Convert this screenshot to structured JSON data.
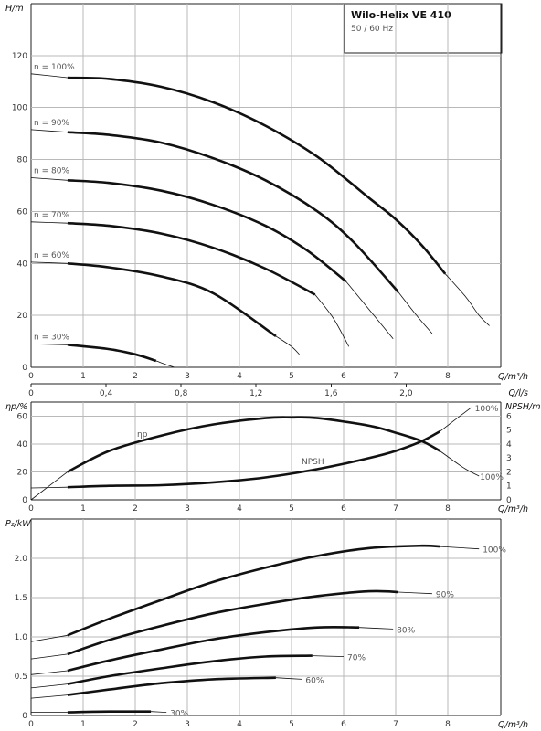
{
  "title": "Wilo-Helix VE 410",
  "subtitle": "50 / 60 Hz",
  "chart_data": [
    {
      "type": "line",
      "ylabel": "H/m",
      "xlabel": "Q/m³/h",
      "xlabel2": "Q/l/s",
      "xlim": [
        0,
        9.5
      ],
      "ylim": [
        0,
        140
      ],
      "x_ticks": [
        "0",
        "1",
        "2",
        "3",
        "4",
        "5",
        "6",
        "7",
        "8"
      ],
      "x_ticks2": [
        "0",
        "0,4",
        "0,8",
        "1,2",
        "1,6",
        "2,0"
      ],
      "y_ticks": [
        "0",
        "20",
        "40",
        "60",
        "80",
        "100",
        "120"
      ],
      "series": [
        {
          "name": "n = 100%",
          "thin_start": [
            [
              0,
              113
            ],
            [
              0.7,
              111.5
            ]
          ],
          "thick": [
            [
              0.7,
              111.5
            ],
            [
              1.5,
              111
            ],
            [
              2.5,
              108
            ],
            [
              3.5,
              102
            ],
            [
              4.5,
              93
            ],
            [
              5.5,
              81
            ],
            [
              6.5,
              65
            ],
            [
              7,
              57
            ],
            [
              7.5,
              47
            ],
            [
              7.95,
              36
            ]
          ],
          "thin_end": [
            [
              7.95,
              36
            ],
            [
              8.35,
              27
            ],
            [
              8.6,
              20
            ],
            [
              8.8,
              16
            ]
          ]
        },
        {
          "name": "n = 90%",
          "thin_start": [
            [
              0,
              91.5
            ],
            [
              0.7,
              90.5
            ]
          ],
          "thick": [
            [
              0.7,
              90.5
            ],
            [
              1.5,
              89.5
            ],
            [
              2.5,
              86.5
            ],
            [
              3.5,
              80.5
            ],
            [
              4.5,
              72
            ],
            [
              5.5,
              60
            ],
            [
              6.2,
              48
            ],
            [
              7.05,
              29
            ]
          ],
          "thin_end": [
            [
              7.05,
              29
            ],
            [
              7.4,
              20
            ],
            [
              7.7,
              13
            ]
          ]
        },
        {
          "name": "n = 80%",
          "thin_start": [
            [
              0,
              73
            ],
            [
              0.7,
              72
            ]
          ],
          "thick": [
            [
              0.7,
              72
            ],
            [
              1.5,
              71
            ],
            [
              2.5,
              68
            ],
            [
              3.5,
              62.5
            ],
            [
              4.5,
              54.5
            ],
            [
              5.3,
              45
            ],
            [
              6.05,
              33
            ]
          ],
          "thin_end": [
            [
              6.05,
              33
            ],
            [
              6.5,
              22
            ],
            [
              6.95,
              11
            ]
          ]
        },
        {
          "name": "n = 70%",
          "thin_start": [
            [
              0,
              56
            ],
            [
              0.7,
              55.5
            ]
          ],
          "thick": [
            [
              0.7,
              55.5
            ],
            [
              1.5,
              54.5
            ],
            [
              2.5,
              51.5
            ],
            [
              3.5,
              46
            ],
            [
              4.5,
              38
            ],
            [
              5.45,
              28
            ]
          ],
          "thin_end": [
            [
              5.45,
              28
            ],
            [
              5.8,
              19
            ],
            [
              6.1,
              8
            ]
          ]
        },
        {
          "name": "n = 60%",
          "thin_start": [
            [
              0,
              40.5
            ],
            [
              0.7,
              40
            ]
          ],
          "thick": [
            [
              0.7,
              40
            ],
            [
              1.5,
              38.5
            ],
            [
              2.5,
              35
            ],
            [
              3.5,
              28.5
            ],
            [
              4.7,
              12
            ]
          ],
          "thin_end": [
            [
              4.7,
              12
            ],
            [
              5,
              8
            ],
            [
              5.15,
              5
            ]
          ]
        },
        {
          "name": "n = 30%",
          "thin_start": [
            [
              0,
              9
            ],
            [
              0.7,
              8.7
            ]
          ],
          "thick": [
            [
              0.7,
              8.7
            ],
            [
              1.5,
              7
            ],
            [
              2,
              5
            ],
            [
              2.4,
              2.5
            ]
          ],
          "thin_end": [
            [
              2.4,
              2.5
            ],
            [
              2.6,
              1
            ],
            [
              2.75,
              0
            ]
          ]
        }
      ]
    },
    {
      "type": "line",
      "ylabel": "ηp/%",
      "ylabel_right": "NPSH/m",
      "xlabel": "Q/m³/h",
      "xlim": [
        0,
        9.5
      ],
      "ylim": [
        0,
        70
      ],
      "ylim_right": [
        0,
        7
      ],
      "x_ticks": [
        "0",
        "1",
        "2",
        "3",
        "4",
        "5",
        "6",
        "7",
        "8"
      ],
      "y_ticks": [
        "0",
        "20",
        "40",
        "60"
      ],
      "y_ticks_right": [
        "0",
        "1",
        "2",
        "3",
        "4",
        "5",
        "6"
      ],
      "series": [
        {
          "name": "ηp",
          "label": "ηp",
          "end_label": "100%",
          "thin_start": [
            [
              0,
              0
            ],
            [
              0.7,
              20
            ]
          ],
          "thick": [
            [
              0.7,
              20
            ],
            [
              1.5,
              35
            ],
            [
              2.5,
              46
            ],
            [
              3.5,
              54
            ],
            [
              4.5,
              58.5
            ],
            [
              5,
              59
            ],
            [
              5.5,
              58.5
            ],
            [
              6.5,
              53
            ],
            [
              7,
              48
            ],
            [
              7.5,
              42
            ],
            [
              7.85,
              35
            ]
          ],
          "thin_end": [
            [
              7.85,
              35
            ],
            [
              8.3,
              23
            ],
            [
              8.6,
              17
            ]
          ]
        },
        {
          "name": "NPSH",
          "label": "NPSH",
          "end_label": "100%",
          "thin_start": [
            [
              0,
              0.85
            ],
            [
              0.7,
              0.9
            ]
          ],
          "thick": [
            [
              0.7,
              0.9
            ],
            [
              1.5,
              1
            ],
            [
              2.5,
              1.05
            ],
            [
              3.5,
              1.25
            ],
            [
              4.5,
              1.6
            ],
            [
              5.5,
              2.2
            ],
            [
              6.5,
              3.0
            ],
            [
              7,
              3.5
            ],
            [
              7.5,
              4.2
            ],
            [
              7.85,
              4.9
            ]
          ],
          "thin_end": [
            [
              7.85,
              4.9
            ],
            [
              8.2,
              5.9
            ],
            [
              8.45,
              6.6
            ]
          ]
        }
      ]
    },
    {
      "type": "line",
      "ylabel": "P₂/kW",
      "xlabel": "Q/m³/h",
      "xlim": [
        0,
        9.5
      ],
      "ylim": [
        0,
        2.5
      ],
      "x_ticks": [
        "0",
        "1",
        "2",
        "3",
        "4",
        "5",
        "6",
        "7",
        "8"
      ],
      "y_ticks": [
        "0",
        "0.5",
        "1.0",
        "1.5",
        "2.0"
      ],
      "series": [
        {
          "name": "100%",
          "thin_start": [
            [
              0,
              0.94
            ],
            [
              0.7,
              1.02
            ]
          ],
          "thick": [
            [
              0.7,
              1.02
            ],
            [
              1.5,
              1.23
            ],
            [
              2.5,
              1.47
            ],
            [
              3.5,
              1.7
            ],
            [
              4.5,
              1.88
            ],
            [
              5.5,
              2.03
            ],
            [
              6.5,
              2.13
            ],
            [
              7.5,
              2.16
            ],
            [
              7.85,
              2.15
            ]
          ],
          "thin_end": [
            [
              7.85,
              2.15
            ],
            [
              8.6,
              2.12
            ]
          ]
        },
        {
          "name": "90%",
          "thin_start": [
            [
              0,
              0.72
            ],
            [
              0.7,
              0.78
            ]
          ],
          "thick": [
            [
              0.7,
              0.78
            ],
            [
              1.5,
              0.96
            ],
            [
              2.5,
              1.14
            ],
            [
              3.5,
              1.3
            ],
            [
              4.5,
              1.42
            ],
            [
              5.5,
              1.52
            ],
            [
              6.5,
              1.58
            ],
            [
              7.05,
              1.57
            ]
          ],
          "thin_end": [
            [
              7.05,
              1.57
            ],
            [
              7.7,
              1.55
            ]
          ]
        },
        {
          "name": "80%",
          "thin_start": [
            [
              0,
              0.52
            ],
            [
              0.7,
              0.57
            ]
          ],
          "thick": [
            [
              0.7,
              0.57
            ],
            [
              1.5,
              0.7
            ],
            [
              2.5,
              0.84
            ],
            [
              3.5,
              0.97
            ],
            [
              4.5,
              1.06
            ],
            [
              5.5,
              1.12
            ],
            [
              6.3,
              1.12
            ]
          ],
          "thin_end": [
            [
              6.3,
              1.12
            ],
            [
              6.95,
              1.1
            ]
          ]
        },
        {
          "name": "70%",
          "thin_start": [
            [
              0,
              0.35
            ],
            [
              0.7,
              0.4
            ]
          ],
          "thick": [
            [
              0.7,
              0.4
            ],
            [
              1.5,
              0.5
            ],
            [
              2.5,
              0.6
            ],
            [
              3.5,
              0.69
            ],
            [
              4.5,
              0.75
            ],
            [
              5.4,
              0.76
            ]
          ],
          "thin_end": [
            [
              5.4,
              0.76
            ],
            [
              6,
              0.75
            ]
          ]
        },
        {
          "name": "60%",
          "thin_start": [
            [
              0,
              0.22
            ],
            [
              0.7,
              0.26
            ]
          ],
          "thick": [
            [
              0.7,
              0.26
            ],
            [
              1.5,
              0.33
            ],
            [
              2.5,
              0.41
            ],
            [
              3.5,
              0.46
            ],
            [
              4.7,
              0.48
            ]
          ],
          "thin_end": [
            [
              4.7,
              0.48
            ],
            [
              5.2,
              0.46
            ]
          ]
        },
        {
          "name": "30%",
          "thin_start": [
            [
              0,
              0.04
            ],
            [
              0.7,
              0.04
            ]
          ],
          "thick": [
            [
              0.7,
              0.04
            ],
            [
              1.5,
              0.05
            ],
            [
              2.3,
              0.05
            ]
          ],
          "thin_end": [
            [
              2.3,
              0.05
            ],
            [
              2.6,
              0.04
            ]
          ]
        }
      ]
    }
  ]
}
